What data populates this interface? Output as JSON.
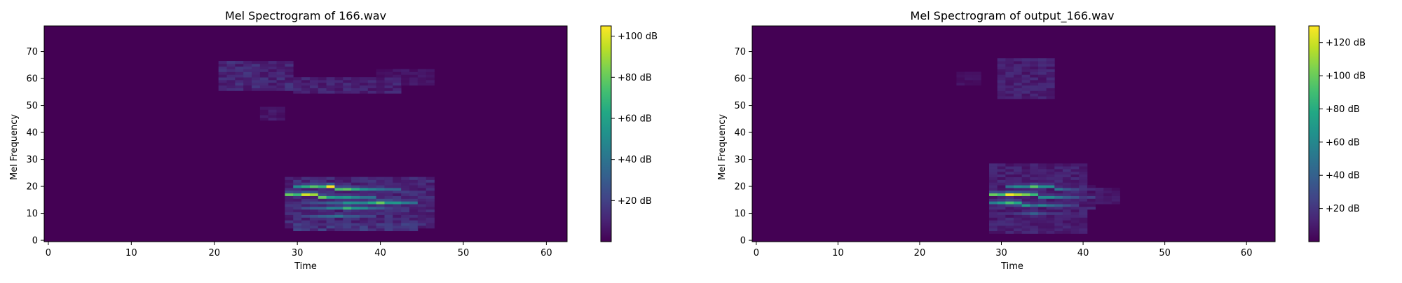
{
  "colors": {
    "background": "#ffffff",
    "viridis": [
      "#440154",
      "#482475",
      "#414487",
      "#355f8d",
      "#2a788e",
      "#21918c",
      "#22a884",
      "#44bf70",
      "#7ad151",
      "#bddf26",
      "#fde725"
    ]
  },
  "chart_data": [
    {
      "type": "heatmap",
      "title": "Mel Spectrogram of 166.wav",
      "xlabel": "Time",
      "ylabel": "Mel Frequency",
      "xlim": [
        -0.5,
        62.5
      ],
      "ylim": [
        -0.5,
        79.5
      ],
      "xticks": [
        0,
        10,
        20,
        30,
        40,
        50,
        60
      ],
      "yticks": [
        0,
        10,
        20,
        30,
        40,
        50,
        60,
        70
      ],
      "n_time": 63,
      "n_mels": 80,
      "colorscale": "viridis",
      "colorbar": {
        "vmin": 0,
        "vmax": 105,
        "ticks": [
          20,
          40,
          60,
          80,
          100
        ],
        "tick_labels": [
          "+20 dB",
          "+40 dB",
          "+60 dB",
          "+80 dB",
          "+100 dB"
        ]
      },
      "blobs": [
        {
          "t0": 21,
          "t1": 29,
          "f0": 56,
          "f1": 66,
          "db": 14
        },
        {
          "t0": 26,
          "t1": 28,
          "f0": 45,
          "f1": 49,
          "db": 8
        },
        {
          "t0": 30,
          "t1": 42,
          "f0": 55,
          "f1": 60,
          "db": 12
        },
        {
          "t0": 40,
          "t1": 46,
          "f0": 58,
          "f1": 63,
          "db": 7
        },
        {
          "t0": 29,
          "t1": 46,
          "f0": 5,
          "f1": 23,
          "db": 14
        },
        {
          "t0": 30,
          "t1": 44,
          "f0": 4,
          "f1": 6,
          "db": 18
        }
      ],
      "harmonics": [
        {
          "t0": 30,
          "t1": 45,
          "f_start": 20,
          "slope": -0.12,
          "peak_db": 104,
          "peak_t": 34
        },
        {
          "t0": 29,
          "t1": 44,
          "f_start": 17,
          "slope": -0.15,
          "peak_db": 98,
          "peak_t": 31
        },
        {
          "t0": 29,
          "t1": 44,
          "f_start": 14,
          "slope": 0.0,
          "peak_db": 80,
          "peak_t": 40
        },
        {
          "t0": 29,
          "t1": 43,
          "f_start": 12,
          "slope": 0.0,
          "peak_db": 70,
          "peak_t": 36
        },
        {
          "t0": 30,
          "t1": 43,
          "f_start": 9,
          "slope": 0.05,
          "peak_db": 40,
          "peak_t": 35
        }
      ]
    },
    {
      "type": "heatmap",
      "title": "Mel Spectrogram of output_166.wav",
      "xlabel": "Time",
      "ylabel": "Mel Frequency",
      "xlim": [
        -0.5,
        63.5
      ],
      "ylim": [
        -0.5,
        79.5
      ],
      "xticks": [
        0,
        10,
        20,
        30,
        40,
        50,
        60
      ],
      "yticks": [
        0,
        10,
        20,
        30,
        40,
        50,
        60,
        70
      ],
      "n_time": 64,
      "n_mels": 80,
      "colorscale": "viridis",
      "colorbar": {
        "vmin": 0,
        "vmax": 130,
        "ticks": [
          20,
          40,
          60,
          80,
          100,
          120
        ],
        "tick_labels": [
          "+20 dB",
          "+40 dB",
          "+60 dB",
          "+80 dB",
          "+100 dB",
          "+120 dB"
        ]
      },
      "blobs": [
        {
          "t0": 30,
          "t1": 36,
          "f0": 53,
          "f1": 67,
          "db": 14
        },
        {
          "t0": 25,
          "t1": 27,
          "f0": 58,
          "f1": 62,
          "db": 7
        },
        {
          "t0": 29,
          "t1": 40,
          "f0": 3,
          "f1": 28,
          "db": 14
        },
        {
          "t0": 37,
          "t1": 44,
          "f0": 14,
          "f1": 19,
          "db": 10
        }
      ],
      "harmonics": [
        {
          "t0": 31,
          "t1": 41,
          "f_start": 20,
          "slope": -0.1,
          "peak_db": 95,
          "peak_t": 34
        },
        {
          "t0": 29,
          "t1": 41,
          "f_start": 17,
          "slope": -0.1,
          "peak_db": 128,
          "peak_t": 31
        },
        {
          "t0": 29,
          "t1": 41,
          "f_start": 14,
          "slope": -0.15,
          "peak_db": 90,
          "peak_t": 31
        },
        {
          "t0": 29,
          "t1": 41,
          "f_start": 13,
          "slope": -0.05,
          "peak_db": 60,
          "peak_t": 35
        },
        {
          "t0": 29,
          "t1": 40,
          "f_start": 10,
          "slope": 0.0,
          "peak_db": 40,
          "peak_t": 34
        }
      ]
    }
  ]
}
